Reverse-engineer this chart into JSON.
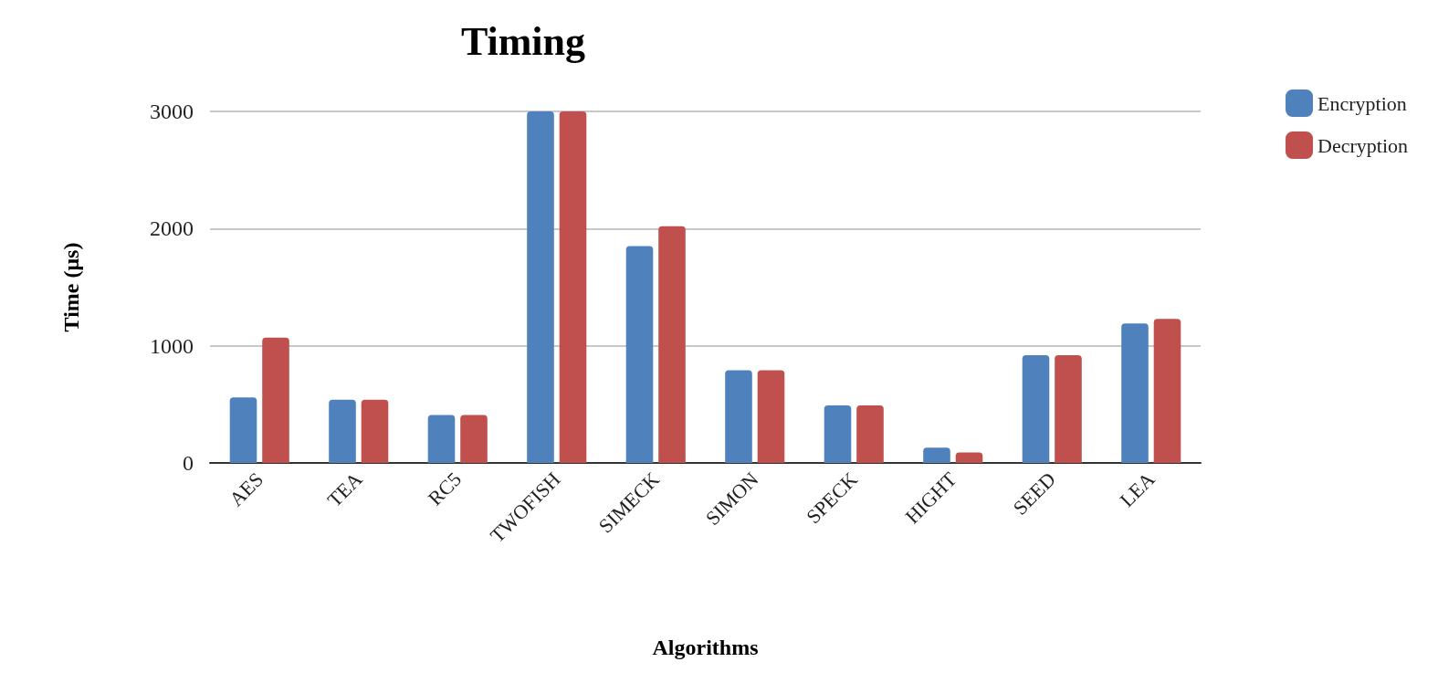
{
  "chart_data": {
    "type": "bar",
    "title": "Timing",
    "xlabel": "Algorithms",
    "ylabel": "Time (μs)",
    "categories": [
      "AES",
      "TEA",
      "RC5",
      "TWOFISH",
      "SIMECK",
      "SIMON",
      "SPECK",
      "HIGHT",
      "SEED",
      "LEA"
    ],
    "series": [
      {
        "name": "Encryption",
        "color": "#4f81bd",
        "values": [
          560,
          540,
          410,
          3000,
          1850,
          790,
          490,
          130,
          920,
          1190
        ]
      },
      {
        "name": "Decryption",
        "color": "#c0504d",
        "values": [
          1070,
          540,
          410,
          3000,
          2020,
          790,
          490,
          90,
          920,
          1230
        ]
      }
    ],
    "ylim": [
      0,
      3000
    ],
    "yticks": [
      0,
      1000,
      2000,
      3000
    ],
    "grid": "y",
    "legend": "top right"
  }
}
